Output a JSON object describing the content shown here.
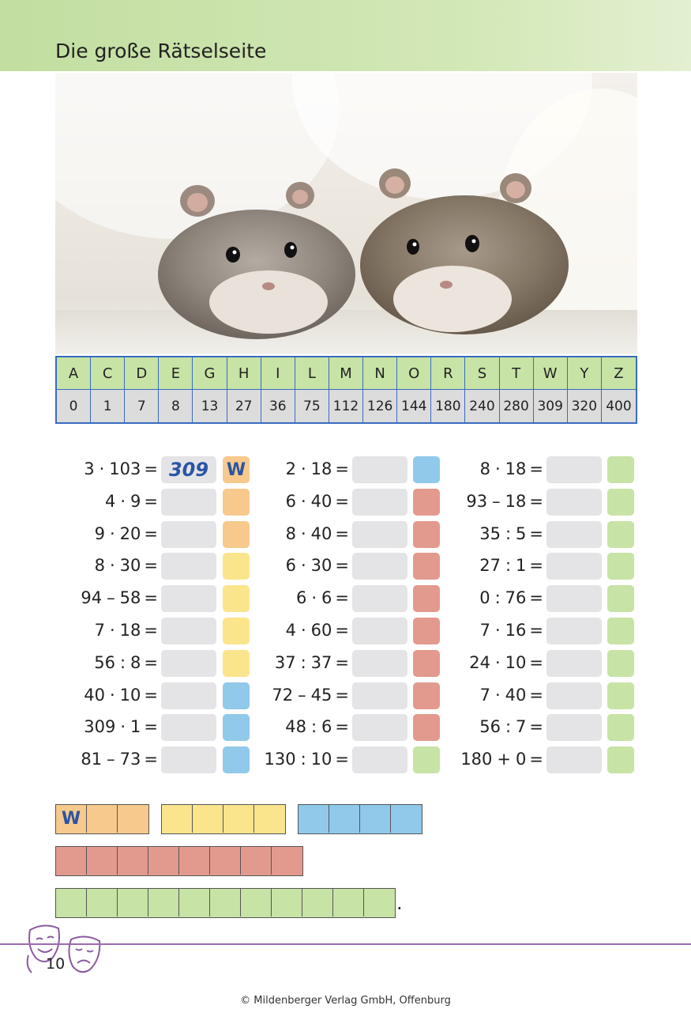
{
  "header": {
    "title": "Die große Rätselseite"
  },
  "photo": {
    "subject": "hamsters"
  },
  "code_table": {
    "letters": [
      "A",
      "C",
      "D",
      "E",
      "G",
      "H",
      "I",
      "L",
      "M",
      "N",
      "O",
      "R",
      "S",
      "T",
      "W",
      "Y",
      "Z"
    ],
    "numbers": [
      "0",
      "1",
      "7",
      "8",
      "13",
      "27",
      "36",
      "75",
      "112",
      "126",
      "144",
      "180",
      "240",
      "280",
      "309",
      "320",
      "400"
    ]
  },
  "columns": [
    {
      "rows": [
        {
          "a": "3",
          "op": "·",
          "b": "103",
          "answer": "309",
          "letter": "W",
          "color": "orange"
        },
        {
          "a": "4",
          "op": "·",
          "b": "9",
          "answer": "",
          "letter": "",
          "color": "orange"
        },
        {
          "a": "9",
          "op": "·",
          "b": "20",
          "answer": "",
          "letter": "",
          "color": "orange"
        },
        {
          "a": "8",
          "op": "·",
          "b": "30",
          "answer": "",
          "letter": "",
          "color": "yellow"
        },
        {
          "a": "94",
          "op": "–",
          "b": "58",
          "answer": "",
          "letter": "",
          "color": "yellow"
        },
        {
          "a": "7",
          "op": "·",
          "b": "18",
          "answer": "",
          "letter": "",
          "color": "yellow"
        },
        {
          "a": "56",
          "op": ":",
          "b": "8",
          "answer": "",
          "letter": "",
          "color": "yellow"
        },
        {
          "a": "40",
          "op": "·",
          "b": "10",
          "answer": "",
          "letter": "",
          "color": "blue"
        },
        {
          "a": "309",
          "op": "·",
          "b": "1",
          "answer": "",
          "letter": "",
          "color": "blue"
        },
        {
          "a": "81",
          "op": "–",
          "b": "73",
          "answer": "",
          "letter": "",
          "color": "blue"
        }
      ]
    },
    {
      "rows": [
        {
          "a": "2",
          "op": "·",
          "b": "18",
          "answer": "",
          "letter": "",
          "color": "blue"
        },
        {
          "a": "6",
          "op": "·",
          "b": "40",
          "answer": "",
          "letter": "",
          "color": "red"
        },
        {
          "a": "8",
          "op": "·",
          "b": "40",
          "answer": "",
          "letter": "",
          "color": "red"
        },
        {
          "a": "6",
          "op": "·",
          "b": "30",
          "answer": "",
          "letter": "",
          "color": "red"
        },
        {
          "a": "6",
          "op": "·",
          "b": "6",
          "answer": "",
          "letter": "",
          "color": "red"
        },
        {
          "a": "4",
          "op": "·",
          "b": "60",
          "answer": "",
          "letter": "",
          "color": "red"
        },
        {
          "a": "37",
          "op": ":",
          "b": "37",
          "answer": "",
          "letter": "",
          "color": "red"
        },
        {
          "a": "72",
          "op": "–",
          "b": "45",
          "answer": "",
          "letter": "",
          "color": "red"
        },
        {
          "a": "48",
          "op": ":",
          "b": "6",
          "answer": "",
          "letter": "",
          "color": "red"
        },
        {
          "a": "130",
          "op": ":",
          "b": "10",
          "answer": "",
          "letter": "",
          "color": "green"
        }
      ]
    },
    {
      "rows": [
        {
          "a": "8",
          "op": "·",
          "b": "18",
          "answer": "",
          "letter": "",
          "color": "green"
        },
        {
          "a": "93",
          "op": "–",
          "b": "18",
          "answer": "",
          "letter": "",
          "color": "green"
        },
        {
          "a": "35",
          "op": ":",
          "b": "5",
          "answer": "",
          "letter": "",
          "color": "green"
        },
        {
          "a": "27",
          "op": ":",
          "b": "1",
          "answer": "",
          "letter": "",
          "color": "green"
        },
        {
          "a": "0",
          "op": ":",
          "b": "76",
          "answer": "",
          "letter": "",
          "color": "green"
        },
        {
          "a": "7",
          "op": "·",
          "b": "16",
          "answer": "",
          "letter": "",
          "color": "green"
        },
        {
          "a": "24",
          "op": "·",
          "b": "10",
          "answer": "",
          "letter": "",
          "color": "green"
        },
        {
          "a": "7",
          "op": "·",
          "b": "40",
          "answer": "",
          "letter": "",
          "color": "green"
        },
        {
          "a": "56",
          "op": ":",
          "b": "7",
          "answer": "",
          "letter": "",
          "color": "green"
        },
        {
          "a": "180",
          "op": "+",
          "b": "0",
          "answer": "",
          "letter": "",
          "color": "green"
        }
      ]
    }
  ],
  "solution_words": [
    {
      "line": 1,
      "color": "orange",
      "letters": [
        "W",
        "",
        ""
      ]
    },
    {
      "line": 1,
      "color": "yellow",
      "letters": [
        "",
        "",
        "",
        ""
      ]
    },
    {
      "line": 1,
      "color": "blue",
      "letters": [
        "",
        "",
        "",
        ""
      ]
    },
    {
      "line": 2,
      "color": "red",
      "letters": [
        "",
        "",
        "",
        "",
        "",
        "",
        "",
        ""
      ]
    },
    {
      "line": 3,
      "color": "green",
      "letters": [
        "",
        "",
        "",
        "",
        "",
        "",
        "",
        "",
        "",
        "",
        ""
      ]
    }
  ],
  "colors": {
    "orange": "#f8c98c",
    "yellow": "#fbe58c",
    "blue": "#90c9ea",
    "red": "#e39a8e",
    "green": "#c7e3a5",
    "header": "#c2dea0",
    "border": "#3a6bc0"
  },
  "punctuation": {
    "end": "."
  },
  "footer": {
    "page_number": "10",
    "copyright": "© Mildenberger Verlag GmbH, Offenburg"
  }
}
